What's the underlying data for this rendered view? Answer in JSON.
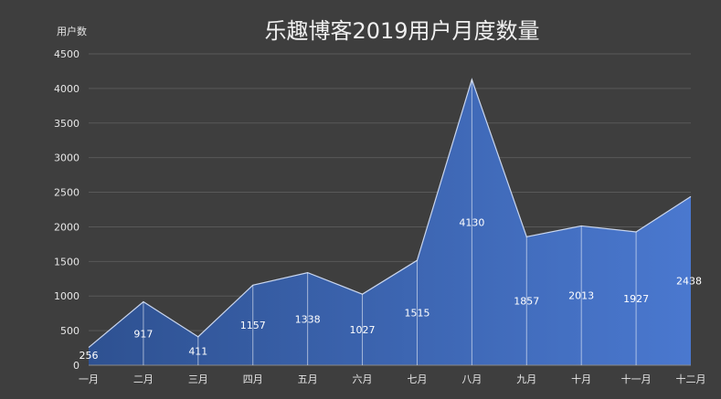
{
  "chart_data": {
    "type": "area",
    "title": "乐趣博客2019用户月度数量",
    "ylabel": "用户数",
    "xlabel": "",
    "categories": [
      "一月",
      "二月",
      "三月",
      "四月",
      "五月",
      "六月",
      "七月",
      "八月",
      "九月",
      "十月",
      "十一月",
      "十二月"
    ],
    "series": [
      {
        "values": [
          256,
          917,
          411,
          1157,
          1338,
          1027,
          1515,
          4130,
          1857,
          2013,
          1927,
          2438
        ]
      }
    ],
    "ylim": [
      0,
      4500
    ],
    "yticks": [
      0,
      500,
      1000,
      1500,
      2000,
      2500,
      3000,
      3500,
      4000,
      4500
    ],
    "grid": true,
    "legend": "none"
  },
  "colors": {
    "background": "#3e3e3e",
    "fill_start": "#2e5191",
    "fill_end": "#4a78cf",
    "line": "#c9d6ef",
    "grid": "#595959",
    "text": "#e6e6e6"
  }
}
